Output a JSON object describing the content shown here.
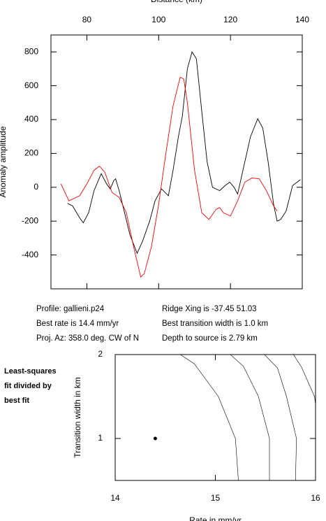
{
  "chart_data": [
    {
      "type": "line",
      "x_label": "Distance (km)",
      "y_label": "Anomaly amplitude",
      "xlim": [
        70,
        140
      ],
      "xticks": [
        80,
        100,
        120,
        140
      ],
      "ylim": [
        -600,
        900
      ],
      "yticks": [
        -400,
        -200,
        0,
        200,
        400,
        600,
        800
      ],
      "series": [
        {
          "color": "#000000",
          "x": [
            74.6,
            76,
            78,
            79,
            80.5,
            82,
            84,
            85.5,
            86.5,
            87.5,
            88,
            89,
            90.5,
            92,
            94,
            95.5,
            97.5,
            99,
            100.8,
            102.7,
            104,
            105.5,
            106.6,
            108,
            109.3,
            110.5,
            112,
            113.5,
            115,
            117,
            118.5,
            119.8,
            121,
            122,
            124,
            125.6,
            127.6,
            129,
            130.5,
            132,
            133,
            134,
            135.5,
            137.3,
            139.5
          ],
          "values": [
            -95,
            -110,
            -180,
            -210,
            -150,
            -20,
            80,
            20,
            -10,
            40,
            50,
            -20,
            -150,
            -280,
            -390,
            -320,
            -200,
            -80,
            -10,
            -50,
            100,
            300,
            420,
            700,
            800,
            760,
            450,
            150,
            0,
            -20,
            10,
            30,
            0,
            -40,
            150,
            300,
            405,
            350,
            150,
            -100,
            -200,
            -190,
            -140,
            10,
            45
          ]
        },
        {
          "color": "#ff0000",
          "x": [
            72.8,
            75,
            78,
            80,
            82,
            83.5,
            85,
            87,
            89,
            91,
            93,
            95,
            96,
            98,
            100,
            102,
            104,
            106,
            107,
            108,
            110,
            112,
            114,
            116,
            117,
            118,
            120,
            122,
            124,
            126,
            128,
            130,
            132,
            133
          ],
          "values": [
            20,
            -80,
            -50,
            20,
            100,
            125,
            90,
            -30,
            -60,
            -150,
            -350,
            -530,
            -510,
            -350,
            -100,
            200,
            480,
            650,
            640,
            500,
            100,
            -150,
            -190,
            -130,
            -120,
            -150,
            -170,
            -80,
            30,
            55,
            50,
            -20,
            -110,
            -140
          ]
        }
      ],
      "info": [
        "Profile: gallieni.p24",
        "Ridge Xing is -37.45 51.03",
        "Best rate is 14.4 mm/yr",
        "Best transition width is 1.0 km",
        "Proj. Az: 358.0 deg. CW of N",
        "Depth to source is   2.79 km"
      ]
    },
    {
      "type": "contour",
      "title": [
        "Least-squares",
        "fit divided by",
        "best fit"
      ],
      "x_label": "Rate in mm/yr",
      "y_label": "Transition width in km",
      "xlim": [
        14,
        16
      ],
      "xticks": [
        14,
        15,
        16
      ],
      "ylim": [
        0.5,
        2
      ],
      "yticks": [
        1,
        2
      ],
      "series": [
        {
          "color": "#000000",
          "x": [
            14.65,
            14.79,
            15.03,
            15.2,
            15.23
          ],
          "values": [
            2,
            1.89,
            1.5,
            1.0,
            0.5
          ]
        },
        {
          "color": "#000000",
          "x": [
            15.15,
            15.28,
            15.43,
            15.54,
            15.54
          ],
          "values": [
            2,
            1.86,
            1.5,
            1.0,
            0.5
          ]
        },
        {
          "color": "#000000",
          "x": [
            15.49,
            15.62,
            15.71,
            15.81,
            15.8
          ],
          "values": [
            2,
            1.84,
            1.5,
            1.0,
            0.5
          ]
        },
        {
          "color": "#000000",
          "x": [
            15.78,
            15.86,
            15.99,
            16
          ],
          "values": [
            2,
            1.85,
            1.5,
            1.4
          ]
        }
      ],
      "point": {
        "x": 14.4,
        "y": 1.0
      }
    }
  ]
}
